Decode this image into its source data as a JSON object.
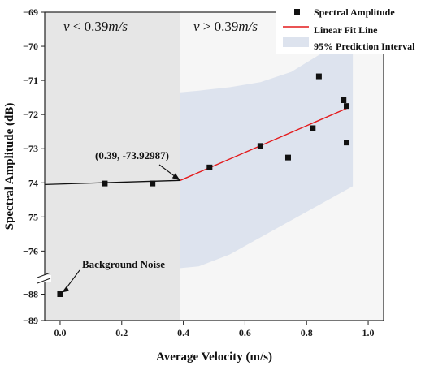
{
  "chart_data": {
    "type": "scatter",
    "xlabel": "Average Velocity (m/s)",
    "ylabel": "Spectral Amplitude (dB)",
    "xlim": [
      -0.05,
      1.05
    ],
    "ylim_upper": [
      -76.8,
      -69
    ],
    "ylim_lower": [
      -89,
      -87.4
    ],
    "axis_break": true,
    "x_ticks": [
      0.0,
      0.2,
      0.4,
      0.6,
      0.8,
      1.0
    ],
    "x_tick_labels": [
      "0.0",
      "0.2",
      "0.4",
      "0.6",
      "0.8",
      "1.0"
    ],
    "y_ticks_upper": [
      -69,
      -70,
      -71,
      -72,
      -73,
      -74,
      -75,
      -76
    ],
    "y_tick_labels_upper": [
      "−69",
      "−70",
      "−71",
      "−72",
      "−73",
      "−74",
      "−75",
      "−76"
    ],
    "y_ticks_lower": [
      -88,
      -89
    ],
    "y_tick_labels_lower": [
      "−88",
      "−89"
    ],
    "regions": [
      {
        "label_html": "v < 0.39m/s",
        "x_from": -0.05,
        "x_to": 0.39,
        "color": "#e6e6e6"
      },
      {
        "label_html": "v > 0.39m/s",
        "x_from": 0.39,
        "x_to": 1.05,
        "color": "#f6f6f6"
      }
    ],
    "region_labels": {
      "left": {
        "v": "v",
        "op": " < 0.39",
        "unit": "m/s"
      },
      "right": {
        "v": "v",
        "op": " > 0.39",
        "unit": "m/s"
      }
    },
    "points": [
      {
        "x": 0.0,
        "y": -88.0
      },
      {
        "x": 0.145,
        "y": -74.02
      },
      {
        "x": 0.3,
        "y": -74.02
      },
      {
        "x": 0.485,
        "y": -73.55
      },
      {
        "x": 0.65,
        "y": -72.92
      },
      {
        "x": 0.74,
        "y": -73.26
      },
      {
        "x": 0.82,
        "y": -72.4
      },
      {
        "x": 0.84,
        "y": -70.88
      },
      {
        "x": 0.92,
        "y": -71.58
      },
      {
        "x": 0.93,
        "y": -71.75
      },
      {
        "x": 0.93,
        "y": -72.82
      }
    ],
    "low_line": {
      "x": [
        -0.05,
        0.39
      ],
      "y": [
        -74.05,
        -73.93
      ]
    },
    "fit_line": {
      "x": [
        0.39,
        0.93
      ],
      "y": [
        -73.93,
        -71.82
      ]
    },
    "prediction_interval": {
      "x": [
        0.39,
        0.45,
        0.55,
        0.65,
        0.75,
        0.85,
        0.95
      ],
      "upper": [
        -71.35,
        -71.3,
        -71.2,
        -71.05,
        -70.75,
        -70.2,
        -69.6
      ],
      "lower": [
        -76.5,
        -76.45,
        -76.1,
        -75.6,
        -75.1,
        -74.6,
        -74.1
      ]
    },
    "series": [
      {
        "name": "Spectral Amplitude",
        "marker": "square",
        "color": "#111111"
      },
      {
        "name": "Linear Fit Line",
        "marker": "line",
        "color": "#e41a1c"
      },
      {
        "name": "95% Prediction Interval",
        "marker": "area",
        "color": "#dde3ee"
      }
    ],
    "legend_position": "top-right",
    "annotations": [
      {
        "text": "(0.39, -73.92987)",
        "target": {
          "x": 0.39,
          "y": -73.93
        }
      },
      {
        "text": "Background Noise",
        "target": {
          "x": 0.0,
          "y": -88.0
        }
      }
    ],
    "grid": false
  }
}
